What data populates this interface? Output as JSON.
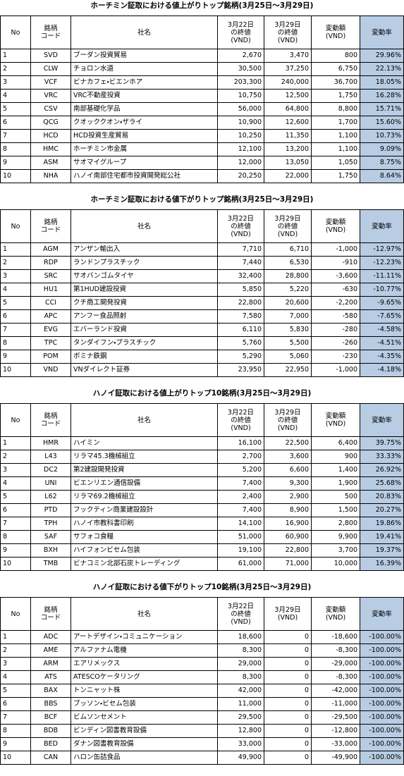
{
  "tables": [
    {
      "title": "ホーチミン証取における値上がりトップ銘柄(3月25日～3月29日)",
      "headers": [
        [
          "No"
        ],
        [
          "銘柄",
          "コード"
        ],
        [
          "社名"
        ],
        [
          "3月22日",
          "の終値",
          "(VND)"
        ],
        [
          "3月29日",
          "の終値",
          "(VND)"
        ],
        [
          "変動額",
          "(VND)"
        ],
        [
          "変動率"
        ]
      ],
      "rows": [
        [
          "1",
          "SVD",
          "ブーダン投資貿易",
          "2,670",
          "3,470",
          "800",
          "29.96%"
        ],
        [
          "2",
          "CLW",
          "チョロン水道",
          "30,500",
          "37,250",
          "6,750",
          "22.13%"
        ],
        [
          "3",
          "VCF",
          "ビナカフェ・ビエンホア",
          "203,300",
          "240,000",
          "36,700",
          "18.05%"
        ],
        [
          "4",
          "VRC",
          "VRC不動産投資",
          "10,750",
          "12,500",
          "1,750",
          "16.28%"
        ],
        [
          "5",
          "CSV",
          "南部基礎化学品",
          "56,000",
          "64,800",
          "8,800",
          "15.71%"
        ],
        [
          "6",
          "QCG",
          "クオッククオン・ザライ",
          "10,900",
          "12,600",
          "1,700",
          "15.60%"
        ],
        [
          "7",
          "HCD",
          "HCD投資生産貿易",
          "10,250",
          "11,350",
          "1,100",
          "10.73%"
        ],
        [
          "8",
          "HMC",
          "ホーチミン市金属",
          "12,100",
          "13,200",
          "1,100",
          "9.09%"
        ],
        [
          "9",
          "ASM",
          "サオマイグループ",
          "12,000",
          "13,050",
          "1,050",
          "8.75%"
        ],
        [
          "10",
          "NHA",
          "ハノイ南部住宅都市投資開発総公社",
          "20,250",
          "22,000",
          "1,750",
          "8.64%"
        ]
      ]
    },
    {
      "title": "ホーチミン証取における値下がりトップ銘柄(3月25日～3月29日)",
      "headers": [
        [
          "No"
        ],
        [
          "銘柄",
          "コード"
        ],
        [
          "社名"
        ],
        [
          "3月22日",
          "の終値",
          "(VND)"
        ],
        [
          "3月29日",
          "の終値",
          "(VND)"
        ],
        [
          "変動額",
          "(VND)"
        ],
        [
          "変動率"
        ]
      ],
      "rows": [
        [
          "1",
          "AGM",
          "アンザン輸出入",
          "7,710",
          "6,710",
          "-1,000",
          "-12.97%"
        ],
        [
          "2",
          "RDP",
          "ランドンプラスチック",
          "7,440",
          "6,530",
          "-910",
          "-12.23%"
        ],
        [
          "3",
          "SRC",
          "サオバンゴムタイヤ",
          "32,400",
          "28,800",
          "-3,600",
          "-11.11%"
        ],
        [
          "4",
          "HU1",
          "第1HUD建設投資",
          "5,850",
          "5,220",
          "-630",
          "-10.77%"
        ],
        [
          "5",
          "CCI",
          "クチ商工開発投資",
          "22,800",
          "20,600",
          "-2,200",
          "-9.65%"
        ],
        [
          "6",
          "APC",
          "アンフー食品照射",
          "7,580",
          "7,000",
          "-580",
          "-7.65%"
        ],
        [
          "7",
          "EVG",
          "エバーランド投資",
          "6,110",
          "5,830",
          "-280",
          "-4.58%"
        ],
        [
          "8",
          "TPC",
          "タンダイフン・プラスチック",
          "5,760",
          "5,500",
          "-260",
          "-4.51%"
        ],
        [
          "9",
          "POM",
          "ポミナ鉄鋼",
          "5,290",
          "5,060",
          "-230",
          "-4.35%"
        ],
        [
          "10",
          "VND",
          "VNダイレクト証券",
          "23,950",
          "22,950",
          "-1,000",
          "-4.18%"
        ]
      ]
    },
    {
      "title": "ハノイ証取における値上がりトップ10銘柄(3月25日～3月29日)",
      "headers": [
        [
          "No"
        ],
        [
          "銘柄",
          "コード"
        ],
        [
          "社名"
        ],
        [
          "3月22日",
          "の終値",
          "(VND)"
        ],
        [
          "3月29日",
          "の終値",
          "(VND)"
        ],
        [
          "変動額",
          "(VND)"
        ],
        [
          "変動率"
        ]
      ],
      "rows": [
        [
          "1",
          "HMR",
          "ハイミン",
          "16,100",
          "22,500",
          "6,400",
          "39.75%"
        ],
        [
          "2",
          "L43",
          "リラマ45.3機械組立",
          "2,700",
          "3,600",
          "900",
          "33.33%"
        ],
        [
          "3",
          "DC2",
          "第2建設開発投資",
          "5,200",
          "6,600",
          "1,400",
          "26.92%"
        ],
        [
          "4",
          "UNI",
          "ビエンリエン通信設備",
          "7,400",
          "9,300",
          "1,900",
          "25.68%"
        ],
        [
          "5",
          "L62",
          "リラマ69.2機械組立",
          "2,400",
          "2,900",
          "500",
          "20.83%"
        ],
        [
          "6",
          "PTD",
          "フックティン商業建設設計",
          "7,400",
          "8,900",
          "1,500",
          "20.27%"
        ],
        [
          "7",
          "TPH",
          "ハノイ市教科書印刷",
          "14,100",
          "16,900",
          "2,800",
          "19.86%"
        ],
        [
          "8",
          "SAF",
          "サフォコ食糧",
          "51,000",
          "60,900",
          "9,900",
          "19.41%"
        ],
        [
          "9",
          "BXH",
          "ハイフォンビセム包装",
          "19,100",
          "22,800",
          "3,700",
          "19.37%"
        ],
        [
          "10",
          "TMB",
          "ビナコミン北部石炭トレーディング",
          "61,000",
          "71,000",
          "10,000",
          "16.39%"
        ]
      ]
    },
    {
      "title": "ハノイ証取における値下がりトップ10銘柄(3月25日～3月29日)",
      "headers": [
        [
          "No"
        ],
        [
          "銘柄",
          "コード"
        ],
        [
          "社名"
        ],
        [
          "3月22日",
          "の終値",
          "(VND)"
        ],
        [
          "3月29日",
          "(VND)"
        ],
        [
          "変動額",
          "(VND)"
        ],
        [
          "変動率"
        ]
      ],
      "rows": [
        [
          "1",
          "ADC",
          "アートデザイン・コミュニケーション",
          "18,600",
          "0",
          "-18,600",
          "-100.00%"
        ],
        [
          "2",
          "AME",
          "アルファナム電機",
          "8,300",
          "0",
          "-8,300",
          "-100.00%"
        ],
        [
          "3",
          "ARM",
          "エアリメックス",
          "29,000",
          "0",
          "-29,000",
          "-100.00%"
        ],
        [
          "4",
          "ATS",
          "ATESCOケータリング",
          "8,300",
          "0",
          "-8,300",
          "-100.00%"
        ],
        [
          "5",
          "BAX",
          "トンニャット株",
          "42,000",
          "0",
          "-42,000",
          "-100.00%"
        ],
        [
          "6",
          "BBS",
          "ブッソン・ビセム包装",
          "11,000",
          "0",
          "-11,000",
          "-100.00%"
        ],
        [
          "7",
          "BCF",
          "ビムソンセメント",
          "29,500",
          "0",
          "-29,500",
          "-100.00%"
        ],
        [
          "8",
          "BDB",
          "ビンディン図書教育設備",
          "12,800",
          "0",
          "-12,800",
          "-100.00%"
        ],
        [
          "9",
          "BED",
          "ダナン図書教育設備",
          "33,000",
          "0",
          "-33,000",
          "-100.00%"
        ],
        [
          "10",
          "CAN",
          "ハロン缶詰食品",
          "49,900",
          "0",
          "-49,900",
          "-100.00%"
        ]
      ]
    }
  ]
}
